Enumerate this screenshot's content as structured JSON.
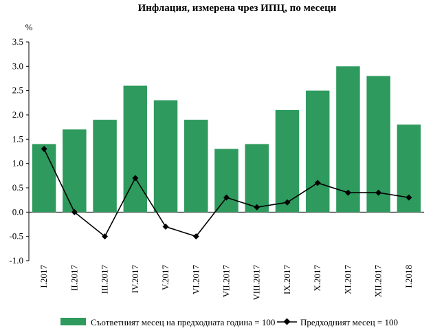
{
  "chart_data": {
    "type": "bar+line",
    "title": "Инфлация, измерена чрез ИПЦ, по месеци",
    "ylabel": "%",
    "ylim": [
      -1.0,
      3.5
    ],
    "yticks": [
      "-1.0",
      "-0.5",
      "0.0",
      "0.5",
      "1.0",
      "1.5",
      "2.0",
      "2.5",
      "3.0",
      "3.5"
    ],
    "categories": [
      "I.2017",
      "II.2017",
      "III.2017",
      "IV.2017",
      "V.2017",
      "VI.2017",
      "VII.2017",
      "VIII.2017",
      "IX.2017",
      "X.2017",
      "XI.2017",
      "XII.2017",
      "I.2018"
    ],
    "series": [
      {
        "name": "Съответният месец на предходната година = 100",
        "kind": "bar",
        "color": "#2e9a5e",
        "values": [
          1.4,
          1.7,
          1.9,
          2.6,
          2.3,
          1.9,
          1.3,
          1.4,
          2.1,
          2.5,
          3.0,
          2.8,
          1.8
        ]
      },
      {
        "name": "Предходният месец = 100",
        "kind": "line",
        "color": "#000000",
        "values": [
          1.3,
          0.0,
          -0.5,
          0.7,
          -0.3,
          -0.5,
          0.3,
          0.1,
          0.2,
          0.6,
          0.4,
          0.4,
          0.3
        ]
      }
    ],
    "legend": "bottom",
    "grid": false
  }
}
